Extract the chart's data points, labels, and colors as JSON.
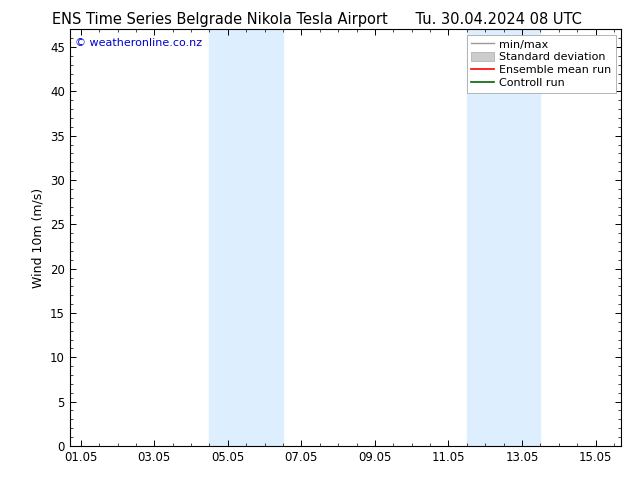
{
  "title_left": "ENS Time Series Belgrade Nikola Tesla Airport",
  "title_right": "Tu. 30.04.2024 08 UTC",
  "ylabel": "Wind 10m (m/s)",
  "ylim": [
    0,
    47
  ],
  "yticks": [
    0,
    5,
    10,
    15,
    20,
    25,
    30,
    35,
    40,
    45
  ],
  "xtick_labels": [
    "01.05",
    "03.05",
    "05.05",
    "07.05",
    "09.05",
    "11.05",
    "13.05",
    "15.05"
  ],
  "xtick_positions": [
    0,
    2,
    4,
    6,
    8,
    10,
    12,
    14
  ],
  "xlim": [
    -0.3,
    14.7
  ],
  "shaded_bands": [
    {
      "x_start": 3.5,
      "x_end": 5.5,
      "color": "#ddeeff"
    },
    {
      "x_start": 10.5,
      "x_end": 12.5,
      "color": "#ddeeff"
    }
  ],
  "legend_entries": [
    {
      "label": "min/max",
      "color": "#999999",
      "lw": 1.0,
      "style": "minmax"
    },
    {
      "label": "Standard deviation",
      "color": "#cccccc",
      "lw": 5,
      "style": "band"
    },
    {
      "label": "Ensemble mean run",
      "color": "#ff0000",
      "lw": 1.2,
      "style": "line"
    },
    {
      "label": "Controll run",
      "color": "#006600",
      "lw": 1.2,
      "style": "line"
    }
  ],
  "watermark_text": "© weatheronline.co.nz",
  "watermark_color": "#0000cc",
  "bg_color": "#ffffff",
  "plot_bg_color": "#ffffff",
  "border_color": "#000000",
  "title_fontsize": 10.5,
  "tick_fontsize": 8.5,
  "ylabel_fontsize": 9,
  "legend_fontsize": 8
}
